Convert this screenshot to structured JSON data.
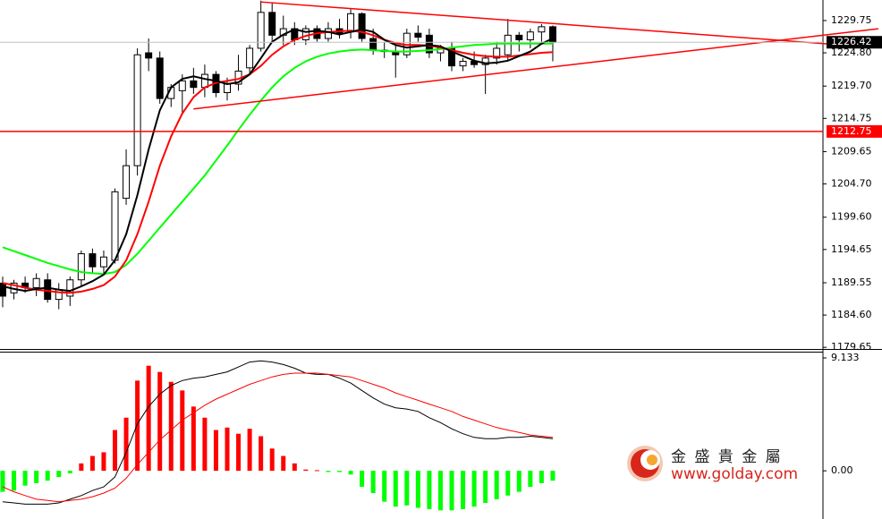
{
  "chart_data": [
    {
      "type": "candlestick",
      "open": [
        1189.5,
        1188,
        1189.5,
        1188.8,
        1190,
        1187,
        1187.5,
        1190,
        1194,
        1192,
        1193,
        1202.5,
        1207.5,
        1224.8,
        1224,
        1217.8,
        1219,
        1220.5,
        1219.5,
        1221.5,
        1218.7,
        1220,
        1222.5,
        1225.5,
        1231,
        1227.5,
        1228.5,
        1226.8,
        1228.5,
        1227,
        1228.5,
        1228,
        1230.8,
        1227,
        1225.2,
        1225,
        1224.5,
        1227.8,
        1227.5,
        1224.8,
        1225.5,
        1222.8,
        1223.5,
        1223,
        1224,
        1224.5,
        1227.5,
        1226.8,
        1228,
        1228.8
      ],
      "high": [
        1190.5,
        1190,
        1190.5,
        1191,
        1191,
        1189.5,
        1190.5,
        1194.5,
        1194.8,
        1194.5,
        1204,
        1210,
        1225.5,
        1227,
        1225,
        1220,
        1221.5,
        1222.5,
        1223,
        1222,
        1221,
        1224.5,
        1226,
        1232.8,
        1232.5,
        1230.5,
        1229.5,
        1229,
        1229,
        1229.5,
        1230,
        1231.5,
        1231,
        1228.5,
        1226.5,
        1226,
        1228.5,
        1229,
        1228.5,
        1226,
        1226.5,
        1224,
        1225,
        1224.5,
        1226.5,
        1230,
        1228,
        1228.5,
        1229.2,
        1229
      ],
      "low": [
        1185.8,
        1187,
        1188,
        1187.5,
        1186.5,
        1185.5,
        1186,
        1189,
        1191,
        1191,
        1192.5,
        1201.5,
        1206,
        1222,
        1217,
        1216.5,
        1215.5,
        1218.5,
        1218,
        1218,
        1217.5,
        1219,
        1221.5,
        1225,
        1226.5,
        1226,
        1226,
        1226,
        1226.5,
        1226.5,
        1227,
        1227,
        1226.5,
        1224.5,
        1224,
        1221,
        1224,
        1226.5,
        1224,
        1223.5,
        1222,
        1222,
        1222.5,
        1218.5,
        1223,
        1223.5,
        1225,
        1225.5,
        1226.5,
        1223.5
      ],
      "close": [
        1187.5,
        1189.5,
        1188.8,
        1190.2,
        1187,
        1188.5,
        1190,
        1194,
        1192,
        1193.5,
        1203.5,
        1207.5,
        1224.5,
        1224,
        1217.8,
        1219.5,
        1220.5,
        1219.5,
        1221.5,
        1218.7,
        1220,
        1222,
        1225.5,
        1231,
        1227.5,
        1228.5,
        1226.8,
        1228.5,
        1227,
        1228.5,
        1227.8,
        1230.8,
        1227,
        1225.2,
        1225,
        1224.5,
        1227.8,
        1227.2,
        1224.8,
        1225.5,
        1222.8,
        1223.5,
        1223,
        1224,
        1225.5,
        1227.5,
        1226.8,
        1228,
        1228.8,
        1226.42
      ],
      "up_color": "#ffffff",
      "down_color": "#000000",
      "ma": [
        {
          "color": "#00ff00",
          "values": [
            1195,
            1194.4,
            1193.8,
            1193.2,
            1192.6,
            1192.1,
            1191.6,
            1191.2,
            1191,
            1190.9,
            1191.2,
            1192.3,
            1194,
            1196,
            1198,
            1200,
            1202,
            1204,
            1206,
            1208.3,
            1210.6,
            1213,
            1215.3,
            1217.5,
            1219.5,
            1221.2,
            1222.5,
            1223.5,
            1224.2,
            1224.7,
            1225,
            1225.2,
            1225.3,
            1225.2,
            1225.1,
            1225,
            1225,
            1225.1,
            1225.2,
            1225.4,
            1225.6,
            1225.8,
            1226,
            1226.1,
            1226.2,
            1226.2,
            1226.2,
            1226.2,
            1226.2,
            1226.2
          ]
        },
        {
          "color": "#ff0000",
          "values": [
            1189.5,
            1189.2,
            1188.8,
            1188.5,
            1188.3,
            1188.1,
            1188,
            1188.2,
            1188.6,
            1189.2,
            1190.5,
            1193,
            1197,
            1202,
            1207.5,
            1212,
            1215.5,
            1218,
            1219.5,
            1220.2,
            1220.5,
            1220.8,
            1221.5,
            1222.8,
            1224.5,
            1225.8,
            1226.8,
            1227.4,
            1227.8,
            1228,
            1228.1,
            1228.2,
            1228,
            1227.5,
            1226.8,
            1226.3,
            1226,
            1226,
            1225.9,
            1225.6,
            1225.2,
            1224.8,
            1224.5,
            1224.3,
            1224.2,
            1224.2,
            1224.4,
            1224.6,
            1224.8,
            1224.9
          ]
        },
        {
          "color": "#000000",
          "values": [
            1189,
            1188.6,
            1188.3,
            1188.6,
            1188.8,
            1188.5,
            1188.3,
            1189,
            1189.8,
            1190.8,
            1193,
            1197,
            1203,
            1210,
            1216,
            1219.5,
            1220.8,
            1221.2,
            1220.8,
            1220.5,
            1220,
            1220.3,
            1221.5,
            1224,
            1226.5,
            1227.6,
            1228.4,
            1228,
            1228.2,
            1228,
            1227.6,
            1228,
            1228.4,
            1228,
            1226.8,
            1226,
            1225.6,
            1225.8,
            1226,
            1225.8,
            1225,
            1224.3,
            1223.6,
            1223.2,
            1223.3,
            1223.6,
            1224.3,
            1225,
            1226.2,
            1227
          ]
        }
      ],
      "trendlines": [
        {
          "color": "#ff0000",
          "x": [
            23,
            78
          ],
          "y": [
            1232.6,
            1225.6
          ]
        },
        {
          "color": "#ff0000",
          "x": [
            17,
            78
          ],
          "y": [
            1216.2,
            1228.5
          ]
        }
      ],
      "price_tags": [
        {
          "value": 1226.42,
          "color": "#000000",
          "line_color": "#c0c0c0"
        },
        {
          "value": 1212.75,
          "color": "#ff0000",
          "line_color": "#ff0000"
        }
      ],
      "ylim": [
        1179.4,
        1232.9
      ],
      "yticks": [
        1229.75,
        {
          "value": 1224.8,
          "label": "1224.80"
        },
        {
          "value": 1219.7,
          "label": "1219.70"
        },
        1214.75,
        1209.65,
        {
          "value": 1204.7,
          "label": "1204.70"
        },
        {
          "value": 1199.6,
          "label": "1199.60"
        },
        1194.65,
        1189.55,
        {
          "value": 1184.6,
          "label": "1184.60"
        },
        1179.65
      ]
    },
    {
      "type": "macd",
      "histogram": [
        -1.7,
        -1.6,
        -1.2,
        -1.0,
        -0.8,
        -0.5,
        -0.2,
        0.6,
        1.2,
        1.5,
        3.3,
        4.3,
        7.3,
        8.5,
        8.0,
        7.2,
        6.5,
        5.2,
        4.3,
        3.3,
        3.5,
        3.0,
        3.4,
        2.8,
        1.8,
        1.2,
        0.6,
        0.1,
        0.05,
        -0.1,
        -0.1,
        -0.3,
        -1.3,
        -1.8,
        -2.5,
        -2.9,
        -2.8,
        -3.0,
        -3.1,
        -3.2,
        -3.2,
        -3.1,
        -2.9,
        -2.6,
        -2.3,
        -2.0,
        -1.7,
        -1.3,
        -1.0,
        -0.8
      ],
      "positive_color": "#ff0000",
      "negative_color": "#00ff00",
      "lines": [
        {
          "color": "#000000",
          "values": [
            -2.5,
            -2.6,
            -2.7,
            -2.7,
            -2.7,
            -2.6,
            -2.3,
            -2.0,
            -1.6,
            -1.3,
            -0.5,
            1.5,
            3.8,
            5.2,
            6.2,
            6.9,
            7.3,
            7.5,
            7.6,
            7.8,
            8.0,
            8.4,
            8.8,
            8.9,
            8.8,
            8.6,
            8.3,
            7.9,
            7.8,
            7.8,
            7.5,
            7.1,
            6.5,
            5.9,
            5.4,
            5.1,
            5.0,
            4.8,
            4.3,
            3.9,
            3.4,
            3.0,
            2.7,
            2.6,
            2.6,
            2.7,
            2.7,
            2.8,
            2.7,
            2.6
          ]
        },
        {
          "color": "#ff0000",
          "values": [
            -1.3,
            -1.7,
            -2.0,
            -2.3,
            -2.4,
            -2.5,
            -2.4,
            -2.3,
            -2.1,
            -1.8,
            -1.4,
            -0.6,
            0.5,
            1.5,
            2.5,
            3.3,
            4.1,
            4.7,
            5.3,
            5.8,
            6.2,
            6.6,
            7.0,
            7.3,
            7.6,
            7.8,
            7.9,
            7.9,
            7.9,
            7.8,
            7.7,
            7.6,
            7.3,
            7.0,
            6.7,
            6.3,
            6.0,
            5.7,
            5.4,
            5.1,
            4.8,
            4.4,
            4.1,
            3.8,
            3.5,
            3.3,
            3.1,
            2.9,
            2.8,
            2.7
          ]
        }
      ],
      "ylim": [
        -3.9,
        9.64
      ],
      "yticks": [
        9.133,
        {
          "value": 0,
          "label": "0.00"
        }
      ]
    }
  ],
  "watermark": {
    "name": "金 盛 貴 金 屬",
    "url": "www.golday.com"
  }
}
